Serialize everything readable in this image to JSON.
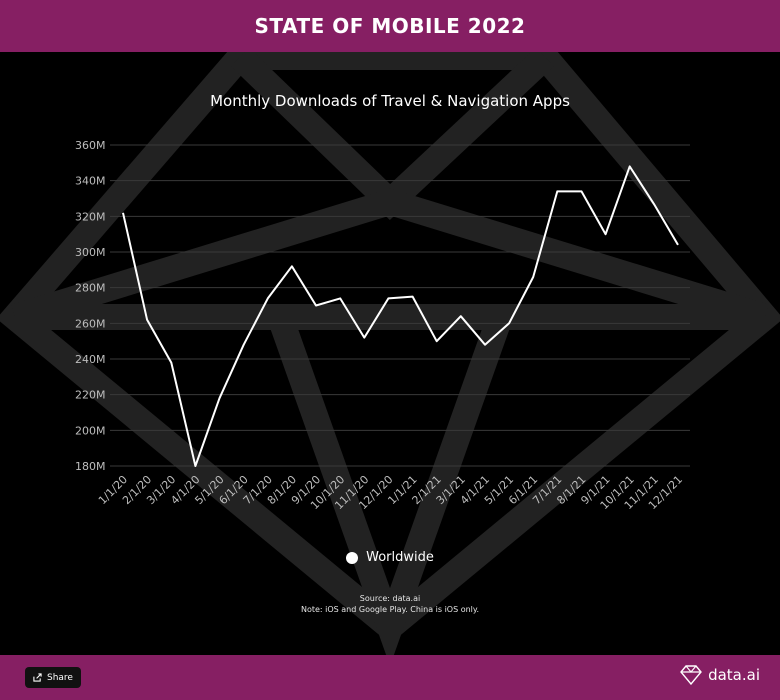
{
  "header": {
    "title": "STATE OF MOBILE 2022"
  },
  "footer": {
    "share_label": "Share",
    "brand": "data.ai"
  },
  "source": {
    "line1": "Source: data.ai",
    "line2": "Note: iOS and Google Play. China is iOS only."
  },
  "legend": {
    "label": "Worldwide"
  },
  "colors": {
    "brand": "#861f63",
    "background": "#000000",
    "line": "#ffffff",
    "grid": "#3a3a3a"
  },
  "chart_data": {
    "type": "line",
    "title": "Monthly Downloads of Travel & Navigation Apps",
    "xlabel": "",
    "ylabel": "",
    "ylim": [
      180,
      360
    ],
    "yticks": [
      "180M",
      "200M",
      "220M",
      "240M",
      "260M",
      "280M",
      "300M",
      "320M",
      "340M",
      "360M"
    ],
    "grid": true,
    "legend_position": "bottom",
    "categories": [
      "1/1/20",
      "2/1/20",
      "3/1/20",
      "4/1/20",
      "5/1/20",
      "6/1/20",
      "7/1/20",
      "8/1/20",
      "9/1/20",
      "10/1/20",
      "11/1/20",
      "12/1/20",
      "1/1/21",
      "2/1/21",
      "3/1/21",
      "4/1/21",
      "5/1/21",
      "6/1/21",
      "7/1/21",
      "8/1/21",
      "9/1/21",
      "10/1/21",
      "11/1/21",
      "12/1/21"
    ],
    "series": [
      {
        "name": "Worldwide",
        "values": [
          322,
          262,
          238,
          180,
          218,
          248,
          274,
          292,
          270,
          274,
          252,
          274,
          275,
          250,
          264,
          248,
          260,
          286,
          334,
          334,
          310,
          348,
          327,
          304
        ]
      }
    ]
  }
}
